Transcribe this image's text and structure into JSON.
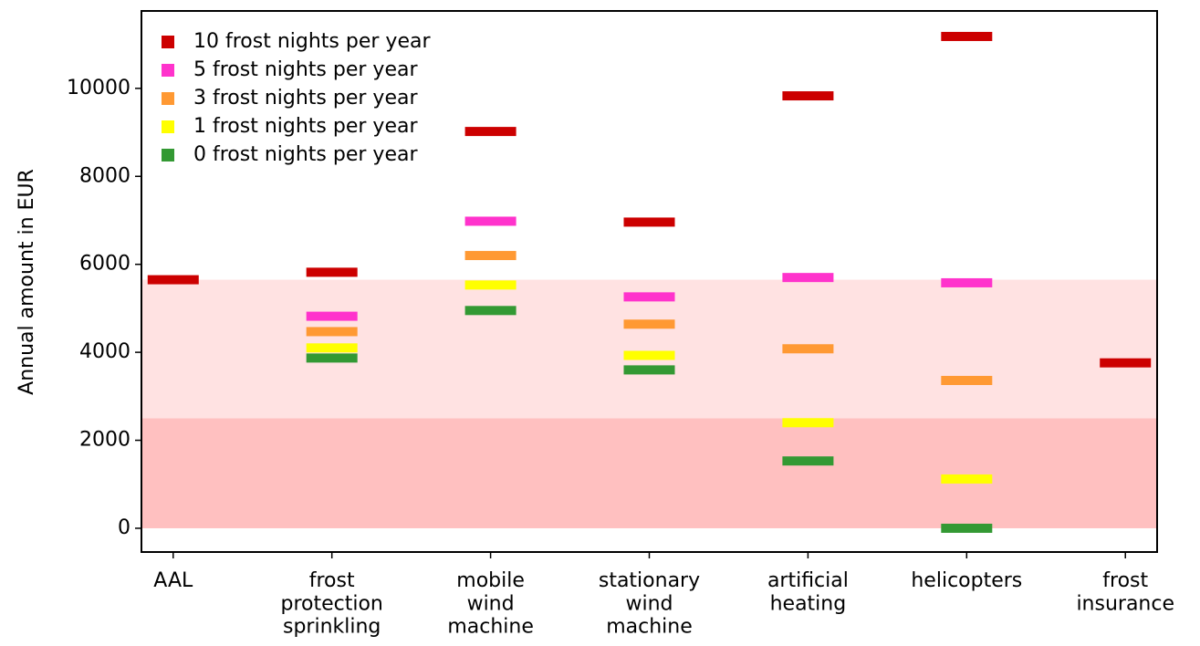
{
  "chart_data": {
    "type": "marker",
    "y_label": "Annual amount in EUR",
    "categories": [
      "AAL",
      "frost\nprotection\nsprinkling",
      "mobile\nwind\nmachine",
      "stationary\nwind\nmachine",
      "artificial\nheating",
      "helicopters",
      "frost\ninsurance"
    ],
    "series": [
      {
        "name": "10 frost nights per year",
        "color": "#cc0000",
        "values": [
          5650,
          5820,
          9020,
          6960,
          9830,
          11180,
          3760
        ]
      },
      {
        "name": "5 frost nights per year",
        "color": "#ff33cc",
        "values": [
          null,
          4820,
          6980,
          5260,
          5700,
          5580,
          null
        ]
      },
      {
        "name": "3 frost nights per year",
        "color": "#ff9933",
        "values": [
          null,
          4470,
          6200,
          4640,
          4080,
          3360,
          null
        ]
      },
      {
        "name": "1 frost nights per year",
        "color": "#ffff00",
        "values": [
          null,
          4100,
          5530,
          3930,
          2400,
          1120,
          null
        ]
      },
      {
        "name": "0 frost nights per year",
        "color": "#339933",
        "values": [
          null,
          3870,
          4950,
          3600,
          1530,
          0,
          null
        ]
      }
    ],
    "bands": [
      {
        "from": 0,
        "to": 2500,
        "color": "#ffc0c0"
      },
      {
        "from": 2500,
        "to": 5650,
        "color": "#ffe2e2"
      }
    ],
    "ylim": [
      -540,
      11760
    ],
    "yticks": [
      0,
      2000,
      4000,
      6000,
      8000,
      10000
    ],
    "legend": "upper-left"
  }
}
